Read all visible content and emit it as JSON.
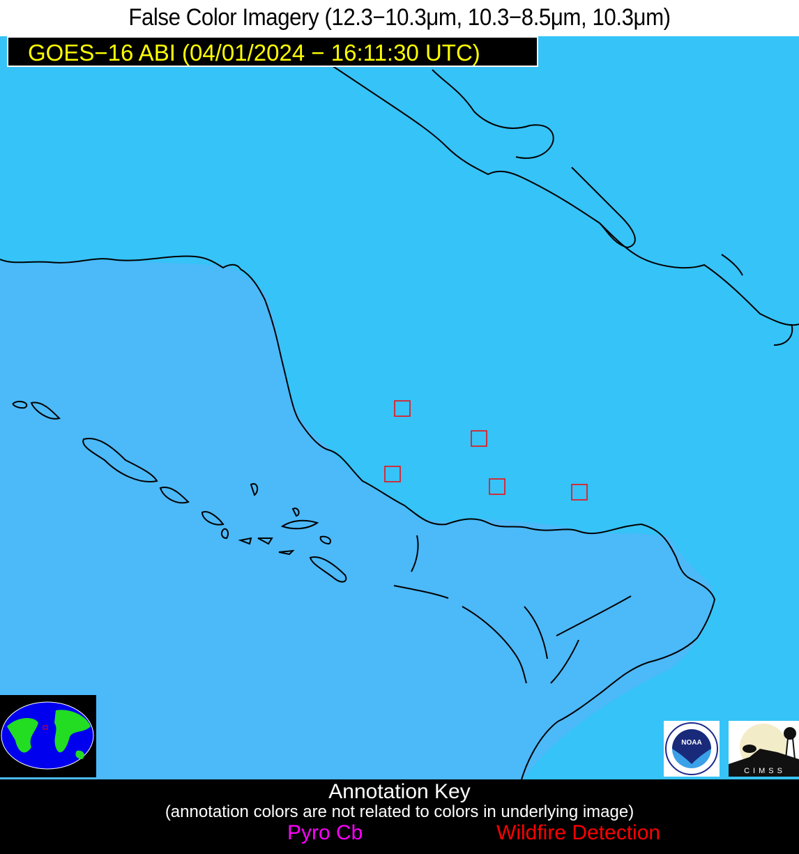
{
  "header": {
    "title": "False Color Imagery (12.3−10.3μm, 10.3−8.5μm, 10.3μm)",
    "subtitle": "GOES−16 ABI (04/01/2024 − 16:11:30 UTC)"
  },
  "map": {
    "ocean_color": "#4cb9f8",
    "land_color": "#38c4f8",
    "coastline_color": "#000000",
    "wildfire_detections": 5,
    "wildfire_box_color": "#ff0000"
  },
  "logos": {
    "noaa": "NOAA",
    "noaa_ring": "NATIONAL OCEANIC AND ATMOSPHERIC ADMINISTRATION U.S. DEPARTMENT OF COMMERCE",
    "cimss": "CIMSS"
  },
  "annotation_key": {
    "title": "Annotation Key",
    "note": "(annotation colors are not related to colors in underlying image)",
    "items": [
      {
        "label": "Pyro Cb",
        "color": "#ff00ff"
      },
      {
        "label": "Wildfire Detection",
        "color": "#ff0000"
      }
    ]
  }
}
